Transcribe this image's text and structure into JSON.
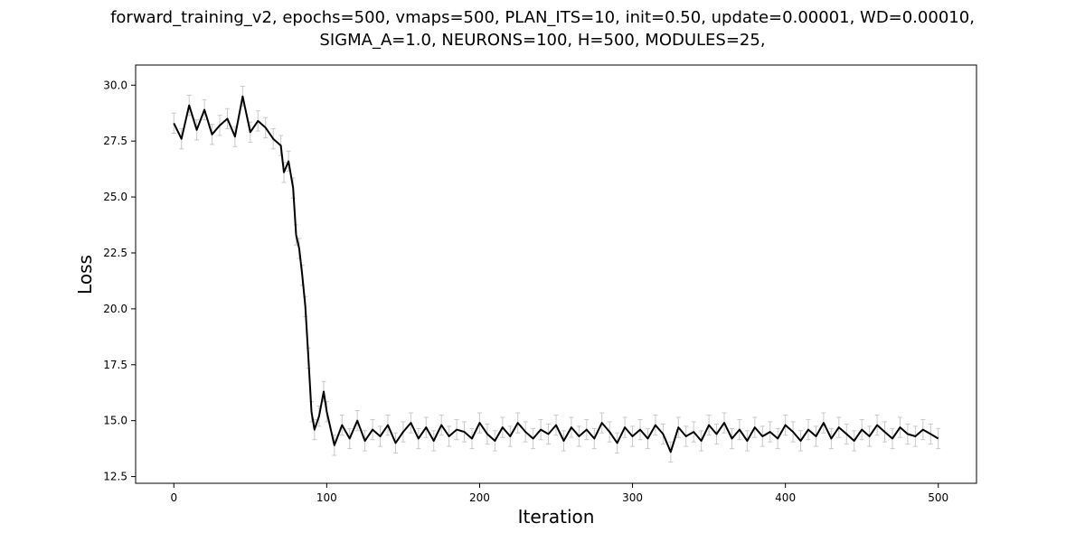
{
  "chart_data": {
    "type": "line",
    "title_lines": [
      "forward_training_v2, epochs=500, vmaps=500, PLAN_ITS=10, init=0.50, update=0.00001, WD=0.00010,",
      "SIGMA_A=1.0, NEURONS=100, H=500, MODULES=25,"
    ],
    "xlabel": "Iteration",
    "ylabel": "Loss",
    "xlim": [
      -25,
      525
    ],
    "ylim": [
      12.2,
      30.9
    ],
    "xticks": [
      0,
      100,
      200,
      300,
      400,
      500
    ],
    "xtick_labels": [
      "0",
      "100",
      "200",
      "300",
      "400",
      "500"
    ],
    "yticks": [
      12.5,
      15.0,
      17.5,
      20.0,
      22.5,
      25.0,
      27.5,
      30.0
    ],
    "ytick_labels": [
      "12.5",
      "15.0",
      "17.5",
      "20.0",
      "22.5",
      "25.0",
      "27.5",
      "30.0"
    ],
    "grid": false,
    "colors": {
      "line": "#000000",
      "errorbar": "#c8c8c8"
    },
    "error_half_width": 0.45,
    "series": [
      {
        "x": [
          0,
          5,
          10,
          15,
          20,
          25,
          30,
          35,
          40,
          45,
          50,
          55,
          60,
          65,
          70,
          72,
          75,
          78,
          80,
          82,
          84,
          86,
          88,
          90,
          92,
          95,
          98,
          100,
          105,
          110,
          115,
          120,
          125,
          130,
          135,
          140,
          145,
          150,
          155,
          160,
          165,
          170,
          175,
          180,
          185,
          190,
          195,
          200,
          205,
          210,
          215,
          220,
          225,
          230,
          235,
          240,
          245,
          250,
          255,
          260,
          265,
          270,
          275,
          280,
          285,
          290,
          295,
          300,
          305,
          310,
          315,
          320,
          325,
          330,
          335,
          340,
          345,
          350,
          355,
          360,
          365,
          370,
          375,
          380,
          385,
          390,
          395,
          400,
          405,
          410,
          415,
          420,
          425,
          430,
          435,
          440,
          445,
          450,
          455,
          460,
          465,
          470,
          475,
          480,
          485,
          490,
          495,
          500
        ],
        "y": [
          28.3,
          27.6,
          29.1,
          28.0,
          28.9,
          27.8,
          28.2,
          28.5,
          27.7,
          29.5,
          27.9,
          28.4,
          28.1,
          27.6,
          27.3,
          26.1,
          26.6,
          25.4,
          23.3,
          22.7,
          21.5,
          20.1,
          17.8,
          15.4,
          14.6,
          15.2,
          16.3,
          15.4,
          13.9,
          14.8,
          14.2,
          15.0,
          14.1,
          14.6,
          14.3,
          14.8,
          14.0,
          14.5,
          14.9,
          14.2,
          14.7,
          14.1,
          14.8,
          14.3,
          14.6,
          14.5,
          14.2,
          14.9,
          14.4,
          14.1,
          14.7,
          14.3,
          14.9,
          14.5,
          14.2,
          14.6,
          14.4,
          14.8,
          14.1,
          14.7,
          14.3,
          14.6,
          14.2,
          14.9,
          14.5,
          14.0,
          14.7,
          14.3,
          14.6,
          14.2,
          14.8,
          14.4,
          13.6,
          14.7,
          14.3,
          14.5,
          14.1,
          14.8,
          14.4,
          14.9,
          14.2,
          14.6,
          14.1,
          14.7,
          14.3,
          14.5,
          14.2,
          14.8,
          14.5,
          14.1,
          14.6,
          14.3,
          14.9,
          14.2,
          14.7,
          14.4,
          14.1,
          14.6,
          14.3,
          14.8,
          14.5,
          14.2,
          14.7,
          14.4,
          14.3,
          14.6,
          14.4,
          14.2
        ]
      }
    ]
  }
}
